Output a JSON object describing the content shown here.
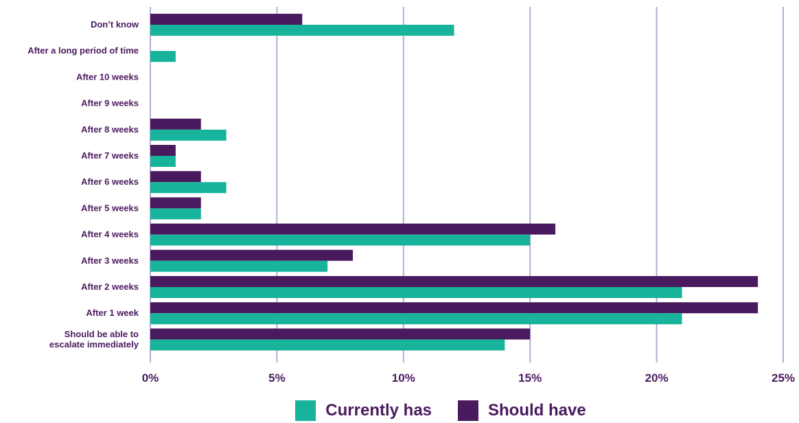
{
  "chart_data": {
    "type": "bar",
    "orientation": "horizontal",
    "categories": [
      "Don’t know",
      "After a long period of time",
      "After 10 weeks",
      "After 9 weeks",
      "After 8 weeks",
      "After 7 weeks",
      "After 6 weeks",
      "After 5 weeks",
      "After 4 weeks",
      "After 3 weeks",
      "After 2 weeks",
      "After 1 week",
      "Should be able to escalate immediately"
    ],
    "category_lines": [
      [
        "Don’t know"
      ],
      [
        "After a long period of time"
      ],
      [
        "After 10 weeks"
      ],
      [
        "After 9 weeks"
      ],
      [
        "After 8 weeks"
      ],
      [
        "After 7 weeks"
      ],
      [
        "After 6 weeks"
      ],
      [
        "After 5 weeks"
      ],
      [
        "After 4 weeks"
      ],
      [
        "After 3 weeks"
      ],
      [
        "After 2 weeks"
      ],
      [
        "After 1 week"
      ],
      [
        "Should be able to",
        "escalate immediately"
      ]
    ],
    "series": [
      {
        "name": "Should have",
        "color": "#4a1a5e",
        "values": [
          6,
          0,
          0,
          0,
          2,
          1,
          2,
          2,
          16,
          8,
          24,
          24,
          15
        ]
      },
      {
        "name": "Currently has",
        "color": "#17b39a",
        "values": [
          12,
          1,
          0,
          0,
          3,
          1,
          3,
          2,
          15,
          7,
          21,
          21,
          14
        ]
      }
    ],
    "xlim": [
      0,
      25
    ],
    "x_ticks": [
      0,
      5,
      10,
      15,
      20,
      25
    ],
    "x_tick_labels": [
      "0%",
      "5%",
      "10%",
      "15%",
      "20%",
      "25%"
    ],
    "grid": "vertical",
    "gridline_color": "#b3acd6",
    "label_color": "#4a1a5e",
    "legend_position": "bottom",
    "legend_order": [
      "Currently has",
      "Should have"
    ]
  }
}
